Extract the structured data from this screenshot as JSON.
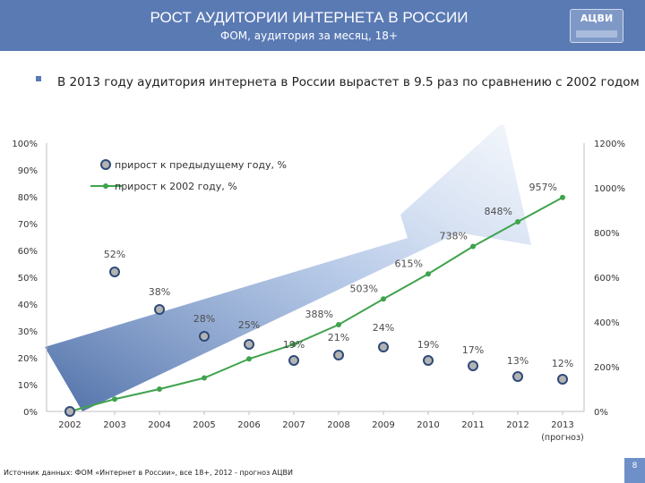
{
  "header": {
    "title": "РОСТ АУДИТОРИИ ИНТЕРНЕТА В РОССИИ",
    "subtitle": "ФОМ, аудитория за месяц, 18+",
    "logo_text": "АЦВИ"
  },
  "bullet": "В 2013 году аудитория интернета в России вырастет в 9.5 раз по сравнению с 2002 годом",
  "chart_data": {
    "type": "line",
    "categories": [
      "2002",
      "2003",
      "2004",
      "2005",
      "2006",
      "2007",
      "2008",
      "2009",
      "2010",
      "2011",
      "2012",
      "2013"
    ],
    "category_note": "(прогноз)",
    "series": [
      {
        "name": "прирост к предыдущему году, %",
        "axis": "left",
        "style": "markers",
        "values": [
          0,
          52,
          38,
          28,
          25,
          19,
          21,
          24,
          19,
          17,
          13,
          12
        ],
        "labels": [
          "",
          "52%",
          "38%",
          "28%",
          "25%",
          "19%",
          "21%",
          "24%",
          "19%",
          "17%",
          "13%",
          "12%"
        ]
      },
      {
        "name": "прирост к 2002 году, %",
        "axis": "right",
        "style": "line",
        "values": [
          0,
          55,
          100,
          150,
          235,
          300,
          388,
          503,
          615,
          738,
          848,
          957
        ],
        "labels": [
          "",
          "",
          "",
          "",
          "",
          "",
          "388%",
          "503%",
          "615%",
          "738%",
          "848%",
          "957%"
        ]
      }
    ],
    "left_axis": {
      "ylim": [
        0,
        100
      ],
      "ticks": [
        "0%",
        "10%",
        "20%",
        "30%",
        "40%",
        "50%",
        "60%",
        "70%",
        "80%",
        "90%",
        "100%"
      ]
    },
    "right_axis": {
      "ylim": [
        0,
        1200
      ],
      "ticks": [
        "0%",
        "200%",
        "400%",
        "600%",
        "800%",
        "1000%",
        "1200%"
      ]
    },
    "legend_position": "top-left",
    "colors": {
      "line": "#3fa34d",
      "marker_fill": "#b3b3b3",
      "marker_edge": "#2e4a7a",
      "arrow": "#9db6e2",
      "label": "#4d4d4d"
    }
  },
  "footer": {
    "source": "Источник данных: ФОМ «Интернет в России», все 18+, 2012 - прогноз АЦВИ",
    "page": "8"
  }
}
